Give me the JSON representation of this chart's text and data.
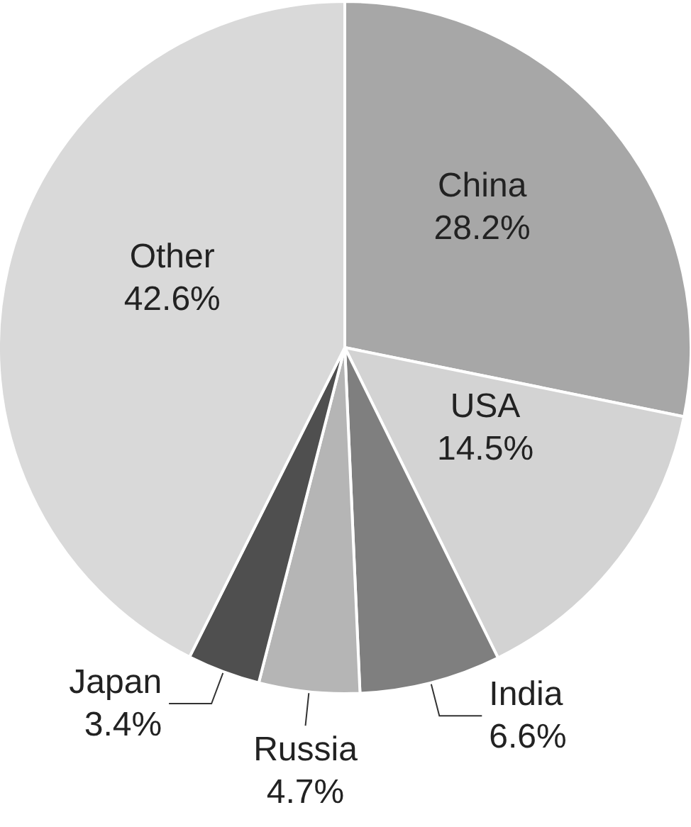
{
  "chart_data": {
    "type": "pie",
    "categories": [
      "China",
      "USA",
      "India",
      "Russia",
      "Japan",
      "Other"
    ],
    "values": [
      28.2,
      14.5,
      6.6,
      4.7,
      3.4,
      42.6
    ],
    "value_labels": [
      "28.2%",
      "14.5%",
      "6.6%",
      "4.7%",
      "3.4%",
      "42.6%"
    ],
    "colors": [
      "#a7a7a7",
      "#d3d3d3",
      "#7f7f7f",
      "#b5b5b5",
      "#4f4f4f",
      "#d9d9d9"
    ],
    "legend": false
  }
}
